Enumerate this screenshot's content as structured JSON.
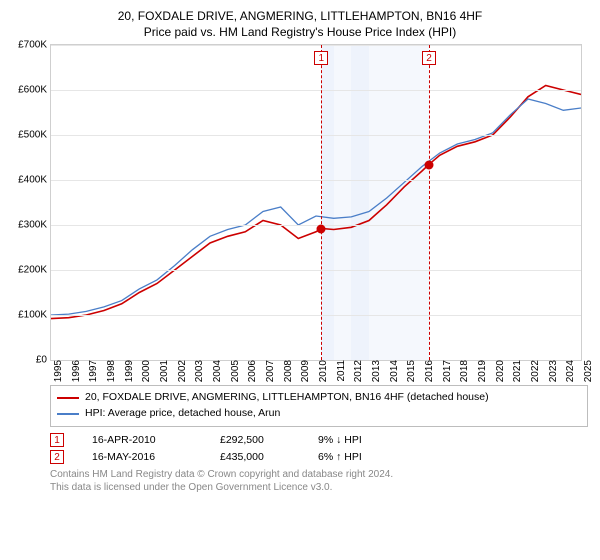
{
  "title_line1": "20, FOXDALE DRIVE, ANGMERING, LITTLEHAMPTON, BN16 4HF",
  "title_line2": "Price paid vs. HM Land Registry's House Price Index (HPI)",
  "chart": {
    "type": "line",
    "ylim": [
      0,
      700000
    ],
    "ytick_step": 100000,
    "yticks": [
      "£0",
      "£100K",
      "£200K",
      "£300K",
      "£400K",
      "£500K",
      "£600K",
      "£700K"
    ],
    "x_start": 1995,
    "x_end": 2025,
    "xticks": [
      "1995",
      "1996",
      "1997",
      "1998",
      "1999",
      "2000",
      "2001",
      "2002",
      "2003",
      "2004",
      "2005",
      "2006",
      "2007",
      "2008",
      "2009",
      "2010",
      "2011",
      "2012",
      "2013",
      "2014",
      "2015",
      "2016",
      "2017",
      "2018",
      "2019",
      "2020",
      "2021",
      "2022",
      "2023",
      "2024",
      "2025"
    ],
    "bands": [
      {
        "from": 2010.3,
        "to": 2011
      },
      {
        "from": 2011,
        "to": 2012,
        "lighter": true
      },
      {
        "from": 2012,
        "to": 2013
      },
      {
        "from": 2013,
        "to": 2016.4,
        "lighter": true
      }
    ],
    "series": [
      {
        "name": "20, FOXDALE DRIVE, ANGMERING, LITTLEHAMPTON, BN16 4HF (detached house)",
        "color": "#cc0000",
        "width": 1.6,
        "points": [
          [
            1995,
            92000
          ],
          [
            1996,
            94000
          ],
          [
            1997,
            100000
          ],
          [
            1998,
            110000
          ],
          [
            1999,
            125000
          ],
          [
            2000,
            150000
          ],
          [
            2001,
            170000
          ],
          [
            2002,
            200000
          ],
          [
            2003,
            230000
          ],
          [
            2004,
            260000
          ],
          [
            2005,
            275000
          ],
          [
            2006,
            285000
          ],
          [
            2007,
            310000
          ],
          [
            2008,
            300000
          ],
          [
            2009,
            270000
          ],
          [
            2010,
            285000
          ],
          [
            2010.3,
            292500
          ],
          [
            2011,
            290000
          ],
          [
            2012,
            295000
          ],
          [
            2013,
            310000
          ],
          [
            2014,
            345000
          ],
          [
            2015,
            385000
          ],
          [
            2016,
            420000
          ],
          [
            2016.4,
            435000
          ],
          [
            2017,
            455000
          ],
          [
            2018,
            475000
          ],
          [
            2019,
            485000
          ],
          [
            2020,
            500000
          ],
          [
            2021,
            540000
          ],
          [
            2022,
            585000
          ],
          [
            2023,
            610000
          ],
          [
            2024,
            600000
          ],
          [
            2025,
            590000
          ]
        ]
      },
      {
        "name": "HPI: Average price, detached house, Arun",
        "color": "#4a7ec8",
        "width": 1.3,
        "points": [
          [
            1995,
            100000
          ],
          [
            1996,
            102000
          ],
          [
            1997,
            108000
          ],
          [
            1998,
            118000
          ],
          [
            1999,
            132000
          ],
          [
            2000,
            158000
          ],
          [
            2001,
            178000
          ],
          [
            2002,
            210000
          ],
          [
            2003,
            245000
          ],
          [
            2004,
            275000
          ],
          [
            2005,
            290000
          ],
          [
            2006,
            300000
          ],
          [
            2007,
            330000
          ],
          [
            2008,
            340000
          ],
          [
            2009,
            300000
          ],
          [
            2010,
            320000
          ],
          [
            2011,
            315000
          ],
          [
            2012,
            318000
          ],
          [
            2013,
            330000
          ],
          [
            2014,
            360000
          ],
          [
            2015,
            395000
          ],
          [
            2016,
            430000
          ],
          [
            2017,
            460000
          ],
          [
            2018,
            480000
          ],
          [
            2019,
            490000
          ],
          [
            2020,
            505000
          ],
          [
            2021,
            545000
          ],
          [
            2022,
            580000
          ],
          [
            2023,
            570000
          ],
          [
            2024,
            555000
          ],
          [
            2025,
            560000
          ]
        ]
      }
    ],
    "markers": [
      {
        "n": "1",
        "x": 2010.3,
        "y": 292500
      },
      {
        "n": "2",
        "x": 2016.4,
        "y": 435000
      }
    ],
    "grid_color": "#e6e6e6",
    "border_color": "#cfcfcf",
    "band_color": "#eef3fc",
    "background_color": "#ffffff"
  },
  "legend": {
    "items": [
      {
        "color": "#cc0000",
        "label": "20, FOXDALE DRIVE, ANGMERING, LITTLEHAMPTON, BN16 4HF (detached house)"
      },
      {
        "color": "#4a7ec8",
        "label": "HPI: Average price, detached house, Arun"
      }
    ]
  },
  "events": [
    {
      "n": "1",
      "date": "16-APR-2010",
      "price": "£292,500",
      "delta": "9% ↓ HPI"
    },
    {
      "n": "2",
      "date": "16-MAY-2016",
      "price": "£435,000",
      "delta": "6% ↑ HPI"
    }
  ],
  "footer_line1": "Contains HM Land Registry data © Crown copyright and database right 2024.",
  "footer_line2": "This data is licensed under the Open Government Licence v3.0."
}
